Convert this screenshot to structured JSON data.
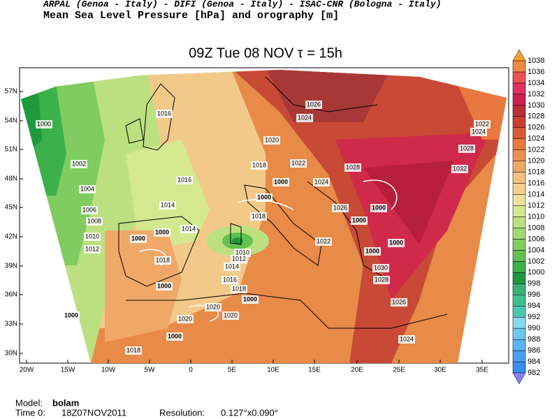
{
  "header": {
    "credits": "ARPAL (Genoa - Italy)  -  DIFI (Genoa - Italy)  -  ISAC-CNR (Bologna - Italy)",
    "field": "Mean Sea Level Pressure [hPa] and orography [m]",
    "title": "09Z Tue 08 NOV  τ = 15h"
  },
  "colorbar": {
    "labels": [
      982,
      984,
      986,
      988,
      990,
      992,
      994,
      996,
      998,
      1000,
      1002,
      1004,
      1006,
      1008,
      1010,
      1012,
      1014,
      1016,
      1018,
      1020,
      1022,
      1024,
      1026,
      1028,
      1030,
      1032,
      1034,
      1036,
      1038
    ],
    "colors": [
      "#3a8cf0",
      "#4aa0f2",
      "#5cb4f2",
      "#70c6f2",
      "#86d8f0",
      "#4cc8b0",
      "#40c090",
      "#38b070",
      "#1e9a3c",
      "#3cb04a",
      "#60c050",
      "#80cc60",
      "#a0d870",
      "#bce080",
      "#d4e890",
      "#f0e0a0",
      "#f4d090",
      "#f4c080",
      "#f0a868",
      "#ec9050",
      "#e87840",
      "#d85a38",
      "#c84030",
      "#b83038",
      "#d02050",
      "#e03060",
      "#ec5050",
      "#f08a40"
    ]
  },
  "latitude_labels": [
    "57N",
    "54N",
    "51N",
    "48N",
    "45N",
    "42N",
    "39N",
    "36N",
    "33N",
    "30N"
  ],
  "longitude_labels": [
    "20W",
    "15W",
    "10W",
    "5W",
    "0",
    "5E",
    "10E",
    "15E",
    "20E",
    "25E",
    "30E",
    "35E"
  ],
  "contour_labels": [
    "1016",
    "1026",
    "1024",
    "1000",
    "1020",
    "1022",
    "1018",
    "1002",
    "1028",
    "1016",
    "1000",
    "1024",
    "1004",
    "1000",
    "1014",
    "1026",
    "1000",
    "1006",
    "1008",
    "1018",
    "1000",
    "1010",
    "1000",
    "1014",
    "1000",
    "1012",
    "1010",
    "1022",
    "1000",
    "1012",
    "1000",
    "1018",
    "1014",
    "1030",
    "1016",
    "1028",
    "1000",
    "1018",
    "1000",
    "1020",
    "1026",
    "1000",
    "1020",
    "1020",
    "1000",
    "1024",
    "1018",
    "1032",
    "1028",
    "1024",
    "1022"
  ],
  "footer": {
    "model_label": "Model:",
    "model": "bolam",
    "time_label": "Time 0:",
    "time": "18Z07NOV2011",
    "resolution_label": "Resolution:",
    "resolution": "0.127°x0.090°"
  }
}
